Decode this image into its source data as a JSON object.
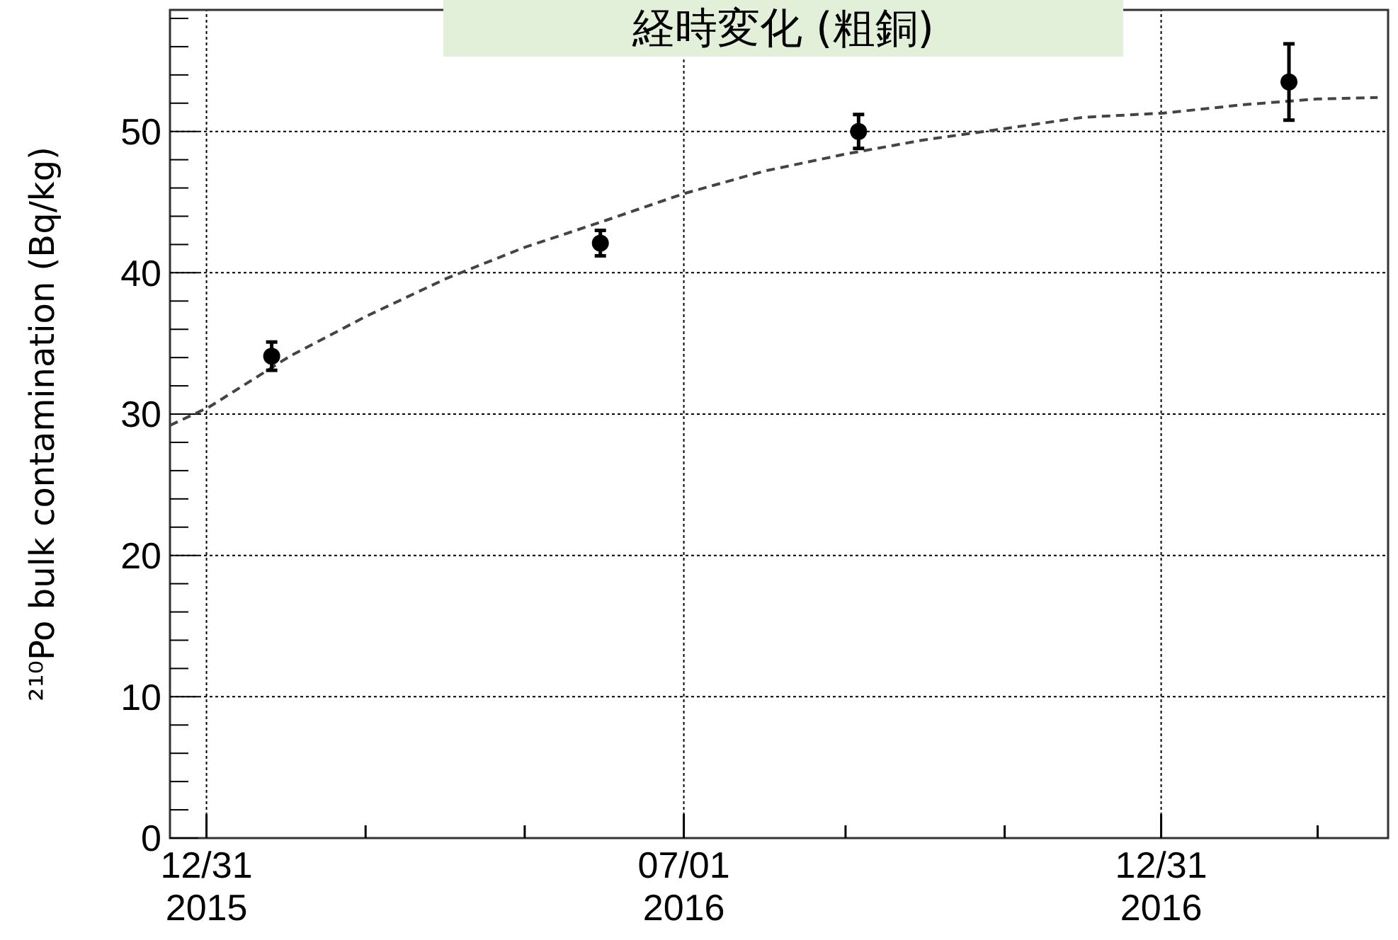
{
  "chart_data": {
    "type": "scatter",
    "title": "経時変化 (粗銅)",
    "ylabel": "²¹⁰Po bulk contamination (Bq/kg)",
    "xlim": [
      "2015-12-17",
      "2017-03-28"
    ],
    "ylim": [
      0,
      58.6
    ],
    "xticks": [
      {
        "value": "2015-12-31",
        "label": "12/31\n2015"
      },
      {
        "value": "2016-03-01",
        "label": null
      },
      {
        "value": "2016-05-01",
        "label": null
      },
      {
        "value": "2016-07-01",
        "label": "07/01\n2016"
      },
      {
        "value": "2016-09-01",
        "label": null
      },
      {
        "value": "2016-11-01",
        "label": null
      },
      {
        "value": "2016-12-31",
        "label": "12/31\n2016"
      },
      {
        "value": "2017-03-01",
        "label": null
      }
    ],
    "yticks": [
      0,
      10,
      20,
      30,
      40,
      50
    ],
    "grid": true,
    "series": [
      {
        "color": "#000000",
        "marker": "circle",
        "x": [
          "2016-01-25",
          "2016-05-30",
          "2016-09-06",
          "2017-02-18"
        ],
        "values": [
          34.1,
          42.1,
          50.0,
          53.5
        ],
        "errors": [
          1.0,
          0.9,
          1.2,
          2.7
        ]
      },
      {
        "type": "line",
        "color": "#444444",
        "line_style": "dashed",
        "x": [
          "2015-12-17",
          "2016-01-01",
          "2016-02-01",
          "2016-03-01",
          "2016-04-01",
          "2016-05-01",
          "2016-06-01",
          "2016-07-01",
          "2016-08-01",
          "2016-09-01",
          "2016-10-01",
          "2016-11-01",
          "2016-12-01",
          "2017-01-01",
          "2017-02-01",
          "2017-03-01",
          "2017-03-24"
        ],
        "values": [
          29.2,
          30.5,
          34.1,
          36.9,
          39.6,
          41.8,
          43.7,
          45.6,
          47.2,
          48.4,
          49.4,
          50.2,
          51.0,
          51.3,
          51.9,
          52.3,
          52.4
        ]
      }
    ]
  }
}
